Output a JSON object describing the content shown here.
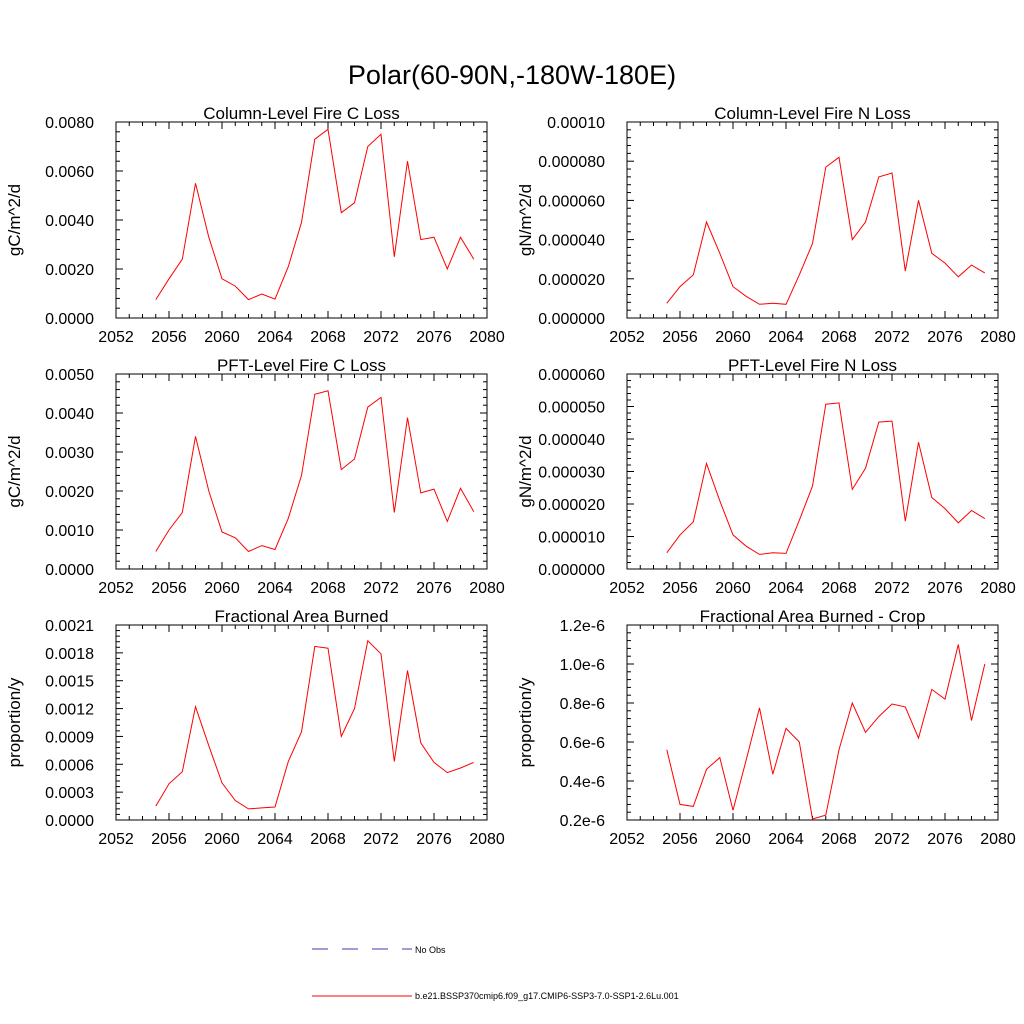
{
  "figure": {
    "title": "Polar(60-90N,-180W-180E)",
    "legend": [
      {
        "label": "No Obs",
        "color": "#3b3bb0",
        "style": "dashed"
      },
      {
        "label": "b.e21.BSSP370cmip6.f09_g17.CMIP6-SSP3-7.0-SSP1-2.6Lu.001",
        "color": "#ff0000",
        "style": "solid"
      }
    ]
  },
  "chart_data": [
    {
      "type": "line",
      "title": "Column-Level Fire C Loss",
      "ylabel": "gC/m^2/d",
      "xlim": [
        2052,
        2080
      ],
      "xticks": [
        "2052",
        "2056",
        "2060",
        "2064",
        "2068",
        "2072",
        "2076",
        "2080"
      ],
      "ylim": [
        0,
        0.008
      ],
      "yticks": [
        "0.0000",
        "0.0020",
        "0.0040",
        "0.0060",
        "0.0080"
      ],
      "line_color": "#ff0000",
      "series": [
        {
          "name": "b.e21.BSSP370cmip6.f09_g17.CMIP6-SSP3-7.0-SSP1-2.6Lu.001",
          "x": [
            2055,
            2056,
            2057,
            2058,
            2059,
            2060,
            2061,
            2062,
            2063,
            2064,
            2065,
            2066,
            2067,
            2068,
            2069,
            2070,
            2071,
            2072,
            2073,
            2074,
            2075,
            2076,
            2077,
            2078,
            2079
          ],
          "values": [
            0.00075,
            0.0016,
            0.0024,
            0.0055,
            0.0033,
            0.0016,
            0.0013,
            0.00075,
            0.00098,
            0.00077,
            0.0021,
            0.0039,
            0.0073,
            0.0077,
            0.0043,
            0.0047,
            0.007,
            0.0075,
            0.0025,
            0.0064,
            0.0032,
            0.0033,
            0.002,
            0.0033,
            0.0024
          ]
        }
      ]
    },
    {
      "type": "line",
      "title": "Column-Level Fire N Loss",
      "ylabel": "gN/m^2/d",
      "xlim": [
        2052,
        2080
      ],
      "xticks": [
        "2052",
        "2056",
        "2060",
        "2064",
        "2068",
        "2072",
        "2076",
        "2080"
      ],
      "ylim": [
        0,
        0.0001
      ],
      "yticks": [
        "0.000000",
        "0.000020",
        "0.000040",
        "0.000060",
        "0.000080",
        "0.00010"
      ],
      "line_color": "#ff0000",
      "series": [
        {
          "name": "b.e21.BSSP370cmip6.f09_g17.CMIP6-SSP3-7.0-SSP1-2.6Lu.001",
          "x": [
            2055,
            2056,
            2057,
            2058,
            2059,
            2060,
            2061,
            2062,
            2063,
            2064,
            2065,
            2066,
            2067,
            2068,
            2069,
            2070,
            2071,
            2072,
            2073,
            2074,
            2075,
            2076,
            2077,
            2078,
            2079
          ],
          "values": [
            7.5e-06,
            1.6e-05,
            2.2e-05,
            4.9e-05,
            3.3e-05,
            1.6e-05,
            1.1e-05,
            7e-06,
            7.5e-06,
            7e-06,
            2.2e-05,
            3.8e-05,
            7.7e-05,
            8.2e-05,
            4e-05,
            4.9e-05,
            7.2e-05,
            7.4e-05,
            2.4e-05,
            6e-05,
            3.3e-05,
            2.8e-05,
            2.1e-05,
            2.7e-05,
            2.3e-05
          ]
        }
      ]
    },
    {
      "type": "line",
      "title": "PFT-Level Fire C Loss",
      "ylabel": "gC/m^2/d",
      "xlim": [
        2052,
        2080
      ],
      "xticks": [
        "2052",
        "2056",
        "2060",
        "2064",
        "2068",
        "2072",
        "2076",
        "2080"
      ],
      "ylim": [
        0,
        0.005
      ],
      "yticks": [
        "0.0000",
        "0.0010",
        "0.0020",
        "0.0030",
        "0.0040",
        "0.0050"
      ],
      "line_color": "#ff0000",
      "series": [
        {
          "name": "b.e21.BSSP370cmip6.f09_g17.CMIP6-SSP3-7.0-SSP1-2.6Lu.001",
          "x": [
            2055,
            2056,
            2057,
            2058,
            2059,
            2060,
            2061,
            2062,
            2063,
            2064,
            2065,
            2066,
            2067,
            2068,
            2069,
            2070,
            2071,
            2072,
            2073,
            2074,
            2075,
            2076,
            2077,
            2078,
            2079
          ],
          "values": [
            0.00045,
            0.001,
            0.00145,
            0.0034,
            0.002,
            0.00095,
            0.0008,
            0.00045,
            0.0006,
            0.0005,
            0.0013,
            0.0024,
            0.00448,
            0.00457,
            0.00255,
            0.00282,
            0.00415,
            0.0044,
            0.00145,
            0.00388,
            0.00195,
            0.00205,
            0.00122,
            0.00207,
            0.00147
          ]
        }
      ]
    },
    {
      "type": "line",
      "title": "PFT-Level Fire N Loss",
      "ylabel": "gN/m^2/d",
      "xlim": [
        2052,
        2080
      ],
      "xticks": [
        "2052",
        "2056",
        "2060",
        "2064",
        "2068",
        "2072",
        "2076",
        "2080"
      ],
      "ylim": [
        0,
        6e-05
      ],
      "yticks": [
        "0.000000",
        "0.000010",
        "0.000020",
        "0.000030",
        "0.000040",
        "0.000050",
        "0.000060"
      ],
      "line_color": "#ff0000",
      "series": [
        {
          "name": "b.e21.BSSP370cmip6.f09_g17.CMIP6-SSP3-7.0-SSP1-2.6Lu.001",
          "x": [
            2055,
            2056,
            2057,
            2058,
            2059,
            2060,
            2061,
            2062,
            2063,
            2064,
            2065,
            2066,
            2067,
            2068,
            2069,
            2070,
            2071,
            2072,
            2073,
            2074,
            2075,
            2076,
            2077,
            2078,
            2079
          ],
          "values": [
            5e-06,
            1.05e-05,
            1.45e-05,
            3.25e-05,
            2.1e-05,
            1.05e-05,
            7e-06,
            4.5e-06,
            5e-06,
            4.8e-06,
            1.5e-05,
            2.55e-05,
            5.07e-05,
            5.11e-05,
            2.45e-05,
            3.1e-05,
            4.52e-05,
            4.55e-05,
            1.47e-05,
            3.9e-05,
            2.2e-05,
            1.86e-05,
            1.42e-05,
            1.8e-05,
            1.55e-05
          ]
        }
      ]
    },
    {
      "type": "line",
      "title": "Fractional Area Burned",
      "ylabel": "proportion/y",
      "xlim": [
        2052,
        2080
      ],
      "xticks": [
        "2052",
        "2056",
        "2060",
        "2064",
        "2068",
        "2072",
        "2076",
        "2080"
      ],
      "ylim": [
        0,
        0.0021
      ],
      "yticks": [
        "0.0000",
        "0.0003",
        "0.0006",
        "0.0009",
        "0.0012",
        "0.0015",
        "0.0018",
        "0.0021"
      ],
      "line_color": "#ff0000",
      "series": [
        {
          "name": "b.e21.BSSP370cmip6.f09_g17.CMIP6-SSP3-7.0-SSP1-2.6Lu.001",
          "x": [
            2055,
            2056,
            2057,
            2058,
            2059,
            2060,
            2061,
            2062,
            2063,
            2064,
            2065,
            2066,
            2067,
            2068,
            2069,
            2070,
            2071,
            2072,
            2073,
            2074,
            2075,
            2076,
            2077,
            2078,
            2079
          ],
          "values": [
            0.00015,
            0.00039,
            0.00052,
            0.00122,
            0.0008,
            0.0004,
            0.00021,
            0.00012,
            0.00013,
            0.00014,
            0.00063,
            0.00095,
            0.00187,
            0.00185,
            0.0009,
            0.0012,
            0.00193,
            0.00179,
            0.00063,
            0.00161,
            0.00083,
            0.00062,
            0.00051,
            0.00056,
            0.00062
          ]
        }
      ]
    },
    {
      "type": "line",
      "title": "Fractional Area Burned - Crop",
      "ylabel": "proportion/y",
      "xlim": [
        2052,
        2080
      ],
      "xticks": [
        "2052",
        "2056",
        "2060",
        "2064",
        "2068",
        "2072",
        "2076",
        "2080"
      ],
      "ylim": [
        2e-07,
        1.2e-06
      ],
      "yticks": [
        "0.2e-6",
        "0.4e-6",
        "0.6e-6",
        "0.8e-6",
        "1.0e-6",
        "1.2e-6"
      ],
      "line_color": "#ff0000",
      "series": [
        {
          "name": "b.e21.BSSP370cmip6.f09_g17.CMIP6-SSP3-7.0-SSP1-2.6Lu.001",
          "x": [
            2055,
            2056,
            2057,
            2058,
            2059,
            2060,
            2061,
            2062,
            2063,
            2064,
            2065,
            2066,
            2067,
            2068,
            2069,
            2070,
            2071,
            2072,
            2073,
            2074,
            2075,
            2076,
            2077,
            2078,
            2079
          ],
          "values": [
            5.6e-07,
            2.8e-07,
            2.7e-07,
            4.6e-07,
            5.2e-07,
            2.5e-07,
            5.1e-07,
            7.75e-07,
            4.35e-07,
            6.7e-07,
            6e-07,
            2.05e-07,
            2.25e-07,
            5.6e-07,
            8e-07,
            6.5e-07,
            7.3e-07,
            7.95e-07,
            7.8e-07,
            6.2e-07,
            8.7e-07,
            8.2e-07,
            1.1e-06,
            7.1e-07,
            1e-06
          ]
        }
      ]
    }
  ]
}
